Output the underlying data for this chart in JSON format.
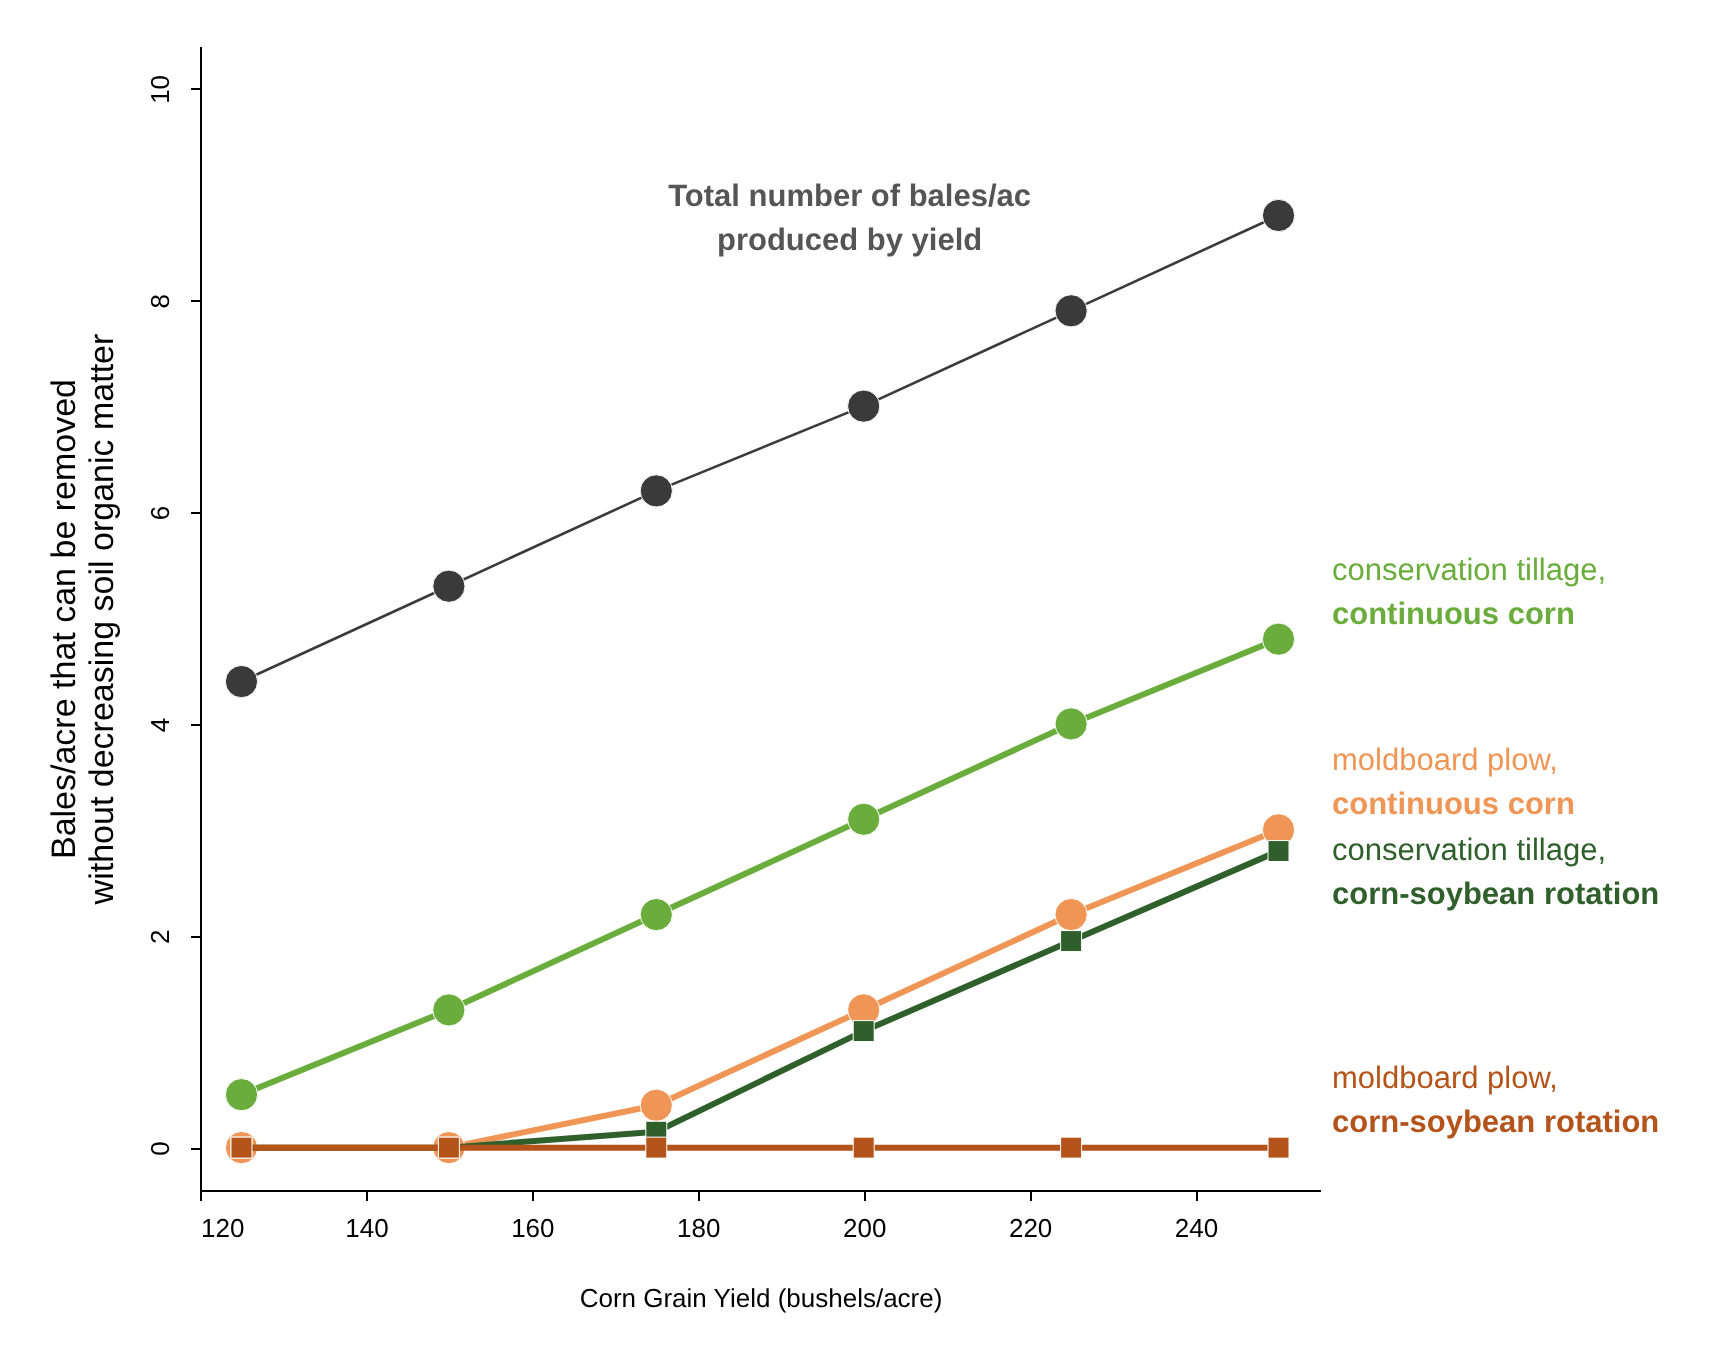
{
  "chart_data": {
    "type": "line",
    "xlabel": "Corn Grain Yield (bushels/acre)",
    "ylabel": "Bales/acre  that can be removed\nwithout decreasing soil organic matter",
    "x": [
      125,
      150,
      175,
      200,
      225,
      250
    ],
    "xlim": [
      120,
      255
    ],
    "xticks": [
      120,
      140,
      160,
      180,
      200,
      220,
      240
    ],
    "ylim": [
      -0.4,
      10.4
    ],
    "yticks": [
      0,
      2,
      4,
      6,
      8,
      10
    ],
    "grid": false,
    "series": [
      {
        "name": "Total number of bales/ac produced by yield",
        "color": "#3a3a3a",
        "marker": "circle",
        "values": [
          4.4,
          5.3,
          6.2,
          7.0,
          7.9,
          8.8
        ]
      },
      {
        "name": "conservation tillage, continuous corn",
        "color": "#6aad3d",
        "marker": "circle",
        "values": [
          0.5,
          1.3,
          2.2,
          3.1,
          4.0,
          4.8
        ]
      },
      {
        "name": "moldboard plow, continuous corn",
        "color": "#ef9656",
        "marker": "circle",
        "values": [
          0,
          0,
          0.4,
          1.3,
          2.2,
          3.0
        ]
      },
      {
        "name": "conservation tillage, corn-soybean rotation",
        "color": "#2f5f2a",
        "marker": "square",
        "values": [
          0,
          0,
          0.15,
          1.1,
          1.95,
          2.8
        ]
      },
      {
        "name": "moldboard plow, corn-soybean rotation",
        "color": "#b5541a",
        "marker": "square",
        "values": [
          0,
          0,
          0,
          0,
          0,
          0
        ]
      }
    ]
  }
}
